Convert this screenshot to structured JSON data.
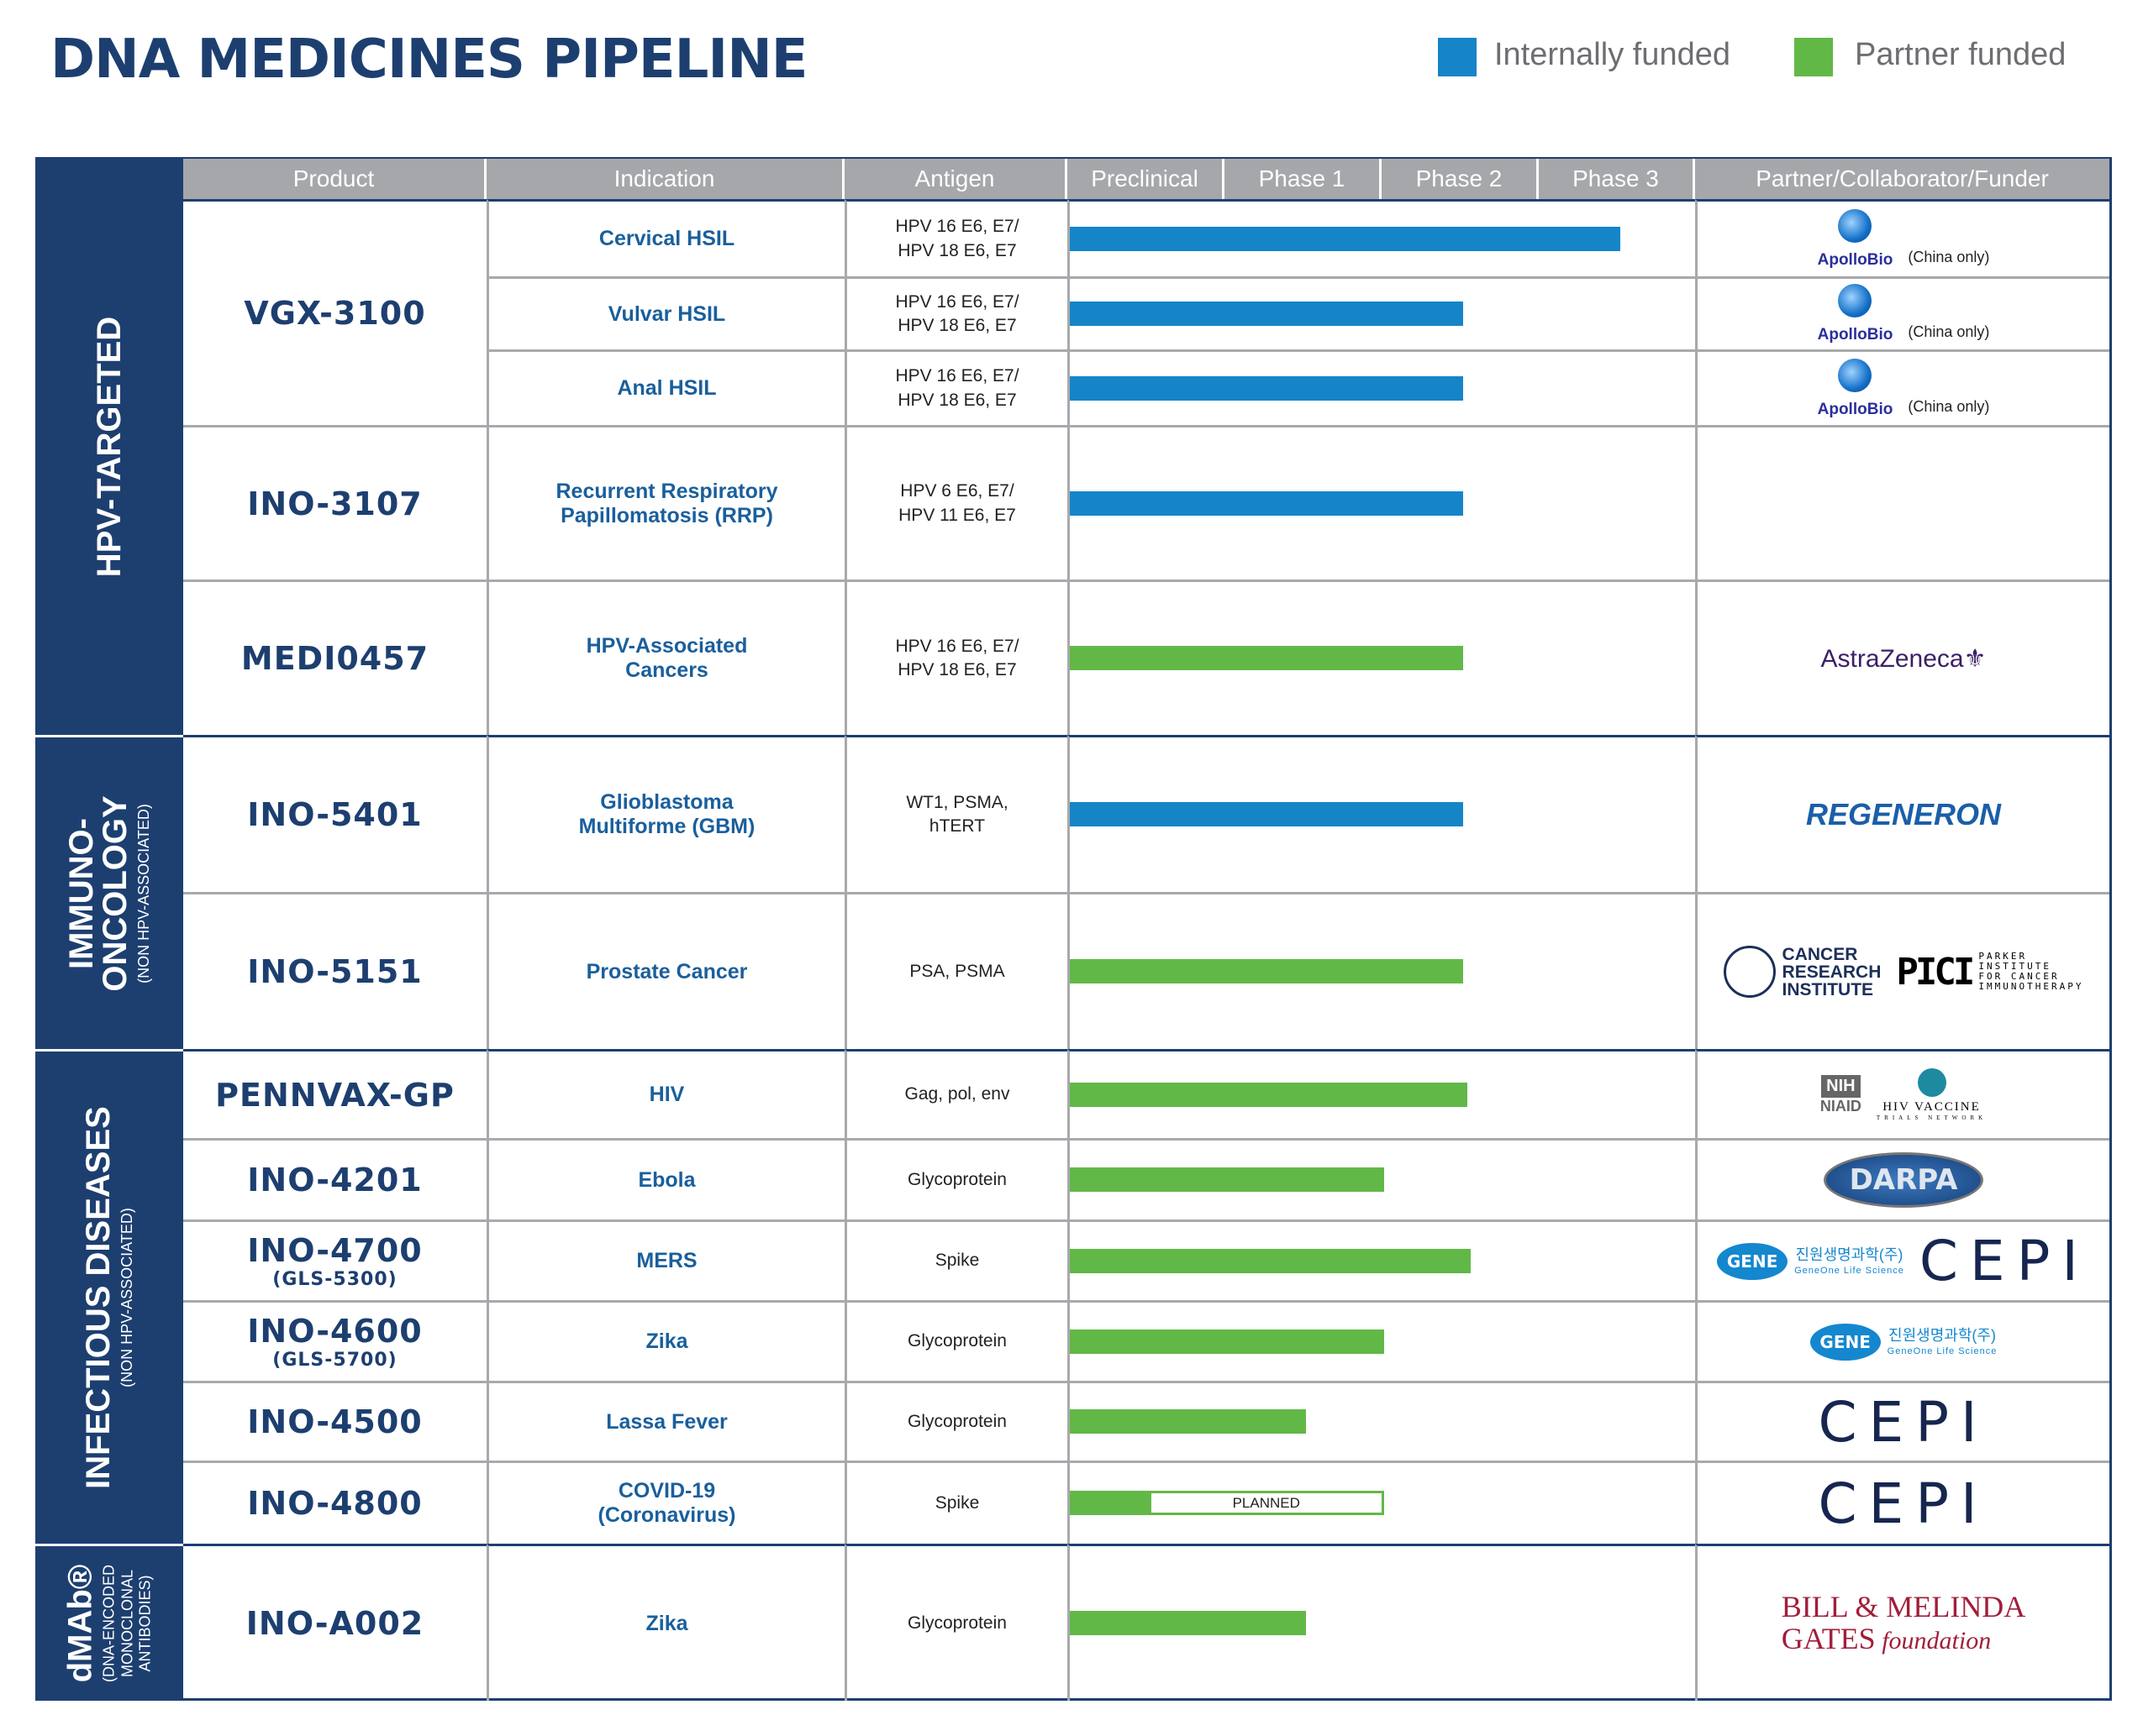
{
  "title": "DNA MEDICINES PIPELINE",
  "legend": [
    {
      "label": "Internally funded",
      "color": "#1585c8"
    },
    {
      "label": "Partner funded",
      "color": "#62b847"
    }
  ],
  "headers": {
    "product": "Product",
    "indication": "Indication",
    "antigen": "Antigen",
    "phases": [
      "Preclinical",
      "Phase 1",
      "Phase 2",
      "Phase 3"
    ],
    "partner": "Partner/Collaborator/Funder"
  },
  "colors": {
    "internal": "#1585c8",
    "partner": "#62b847",
    "navy": "#1d3f70",
    "header": "#a6a7ab"
  },
  "planned_label": "PLANNED",
  "categories": [
    {
      "title": "HPV-TARGETED",
      "subtitle": "",
      "products": [
        {
          "name": "VGX-3100",
          "code": "",
          "rows": [
            {
              "indication": "Cervical HSIL",
              "antigen": "HPV 16 E6, E7/\nHPV 18 E6, E7",
              "funding": "internal",
              "progress_phases": 3.5,
              "partners": [
                {
                  "logo": "apollobio",
                  "text": "ApolloBio",
                  "note": "(China only)"
                }
              ]
            },
            {
              "indication": "Vulvar HSIL",
              "antigen": "HPV 16 E6, E7/\nHPV 18 E6, E7",
              "funding": "internal",
              "progress_phases": 2.5,
              "partners": [
                {
                  "logo": "apollobio",
                  "text": "ApolloBio",
                  "note": "(China only)"
                }
              ]
            },
            {
              "indication": "Anal HSIL",
              "antigen": "HPV 16 E6, E7/\nHPV 18 E6, E7",
              "funding": "internal",
              "progress_phases": 2.5,
              "partners": [
                {
                  "logo": "apollobio",
                  "text": "ApolloBio",
                  "note": "(China only)"
                }
              ]
            }
          ]
        },
        {
          "name": "INO-3107",
          "code": "",
          "rows": [
            {
              "indication": "Recurrent Respiratory\nPapillomatosis (RRP)",
              "antigen": "HPV 6 E6, E7/\nHPV 11 E6, E7",
              "funding": "internal",
              "progress_phases": 2.5,
              "partners": []
            }
          ]
        },
        {
          "name": "MEDI0457",
          "code": "",
          "rows": [
            {
              "indication": "HPV-Associated\nCancers",
              "antigen": "HPV 16 E6, E7/\nHPV 18 E6, E7",
              "funding": "partner",
              "progress_phases": 2.5,
              "partners": [
                {
                  "logo": "astrazeneca",
                  "text": "AstraZeneca"
                }
              ]
            }
          ]
        }
      ]
    },
    {
      "title": "IMMUNO-\nONCOLOGY",
      "subtitle": "(NON HPV-ASSOCIATED)",
      "products": [
        {
          "name": "INO-5401",
          "code": "",
          "rows": [
            {
              "indication": "Glioblastoma\nMultiforme (GBM)",
              "antigen": "WT1, PSMA,\nhTERT",
              "funding": "internal",
              "progress_phases": 2.5,
              "partners": [
                {
                  "logo": "regeneron",
                  "text": "REGENERON"
                }
              ]
            }
          ]
        },
        {
          "name": "INO-5151",
          "code": "",
          "rows": [
            {
              "indication": "Prostate Cancer",
              "antigen": "PSA, PSMA",
              "funding": "partner",
              "progress_phases": 2.5,
              "partners": [
                {
                  "logo": "cri",
                  "text": "CANCER\nRESEARCH\nINSTITUTE"
                },
                {
                  "logo": "pici",
                  "text": "PARKER\nINSTITUTE\nFOR CANCER\nIMMUNOTHERAPY"
                }
              ]
            }
          ]
        }
      ]
    },
    {
      "title": "INFECTIOUS DISEASES",
      "subtitle": "(NON HPV-ASSOCIATED)",
      "products": [
        {
          "name": "PENNVAX-GP",
          "code": "",
          "rows": [
            {
              "indication": "HIV",
              "antigen": "Gag, pol, env",
              "funding": "partner",
              "progress_phases": 2.53,
              "partners": [
                {
                  "logo": "nih",
                  "text": "NIH",
                  "note": "NIAID"
                },
                {
                  "logo": "hvtn",
                  "text": "HIV VACCINE",
                  "note": "TRIALS NETWORK"
                }
              ]
            }
          ]
        },
        {
          "name": "INO-4201",
          "code": "",
          "rows": [
            {
              "indication": "Ebola",
              "antigen": "Glycoprotein",
              "funding": "partner",
              "progress_phases": 2.0,
              "partners": [
                {
                  "logo": "darpa",
                  "text": "DARPA"
                }
              ]
            }
          ]
        },
        {
          "name": "INO-4700",
          "code": "(GLS-5300)",
          "rows": [
            {
              "indication": "MERS",
              "antigen": "Spike",
              "funding": "partner",
              "progress_phases": 2.55,
              "partners": [
                {
                  "logo": "geneone",
                  "text": "진원생명과학(주)",
                  "note": "GeneOne Life Science"
                },
                {
                  "logo": "cepi",
                  "text": "CEPI"
                }
              ]
            }
          ]
        },
        {
          "name": "INO-4600",
          "code": "(GLS-5700)",
          "rows": [
            {
              "indication": "Zika",
              "antigen": "Glycoprotein",
              "funding": "partner",
              "progress_phases": 2.0,
              "partners": [
                {
                  "logo": "geneone",
                  "text": "진원생명과학(주)",
                  "note": "GeneOne Life Science"
                }
              ]
            }
          ]
        },
        {
          "name": "INO-4500",
          "code": "",
          "rows": [
            {
              "indication": "Lassa Fever",
              "antigen": "Glycoprotein",
              "funding": "partner",
              "progress_phases": 1.5,
              "partners": [
                {
                  "logo": "cepi",
                  "text": "CEPI"
                }
              ]
            }
          ]
        },
        {
          "name": "INO-4800",
          "code": "",
          "rows": [
            {
              "indication": "COVID-19\n(Coronavirus)",
              "antigen": "Spike",
              "funding": "partner",
              "progress_phases": 0.5,
              "planned_to_phases": 2.0,
              "partners": [
                {
                  "logo": "cepi",
                  "text": "CEPI"
                }
              ]
            }
          ]
        }
      ]
    },
    {
      "title": "dMAb®",
      "subtitle": "(DNA-ENCODED\nMONOCLONAL\nANTIBODIES)",
      "products": [
        {
          "name": "INO-A002",
          "code": "",
          "rows": [
            {
              "indication": "Zika",
              "antigen": "Glycoprotein",
              "funding": "partner",
              "progress_phases": 1.5,
              "partners": [
                {
                  "logo": "gates",
                  "text": "BILL & MELINDA\nGATES",
                  "note": "foundation"
                }
              ]
            }
          ]
        }
      ]
    }
  ]
}
